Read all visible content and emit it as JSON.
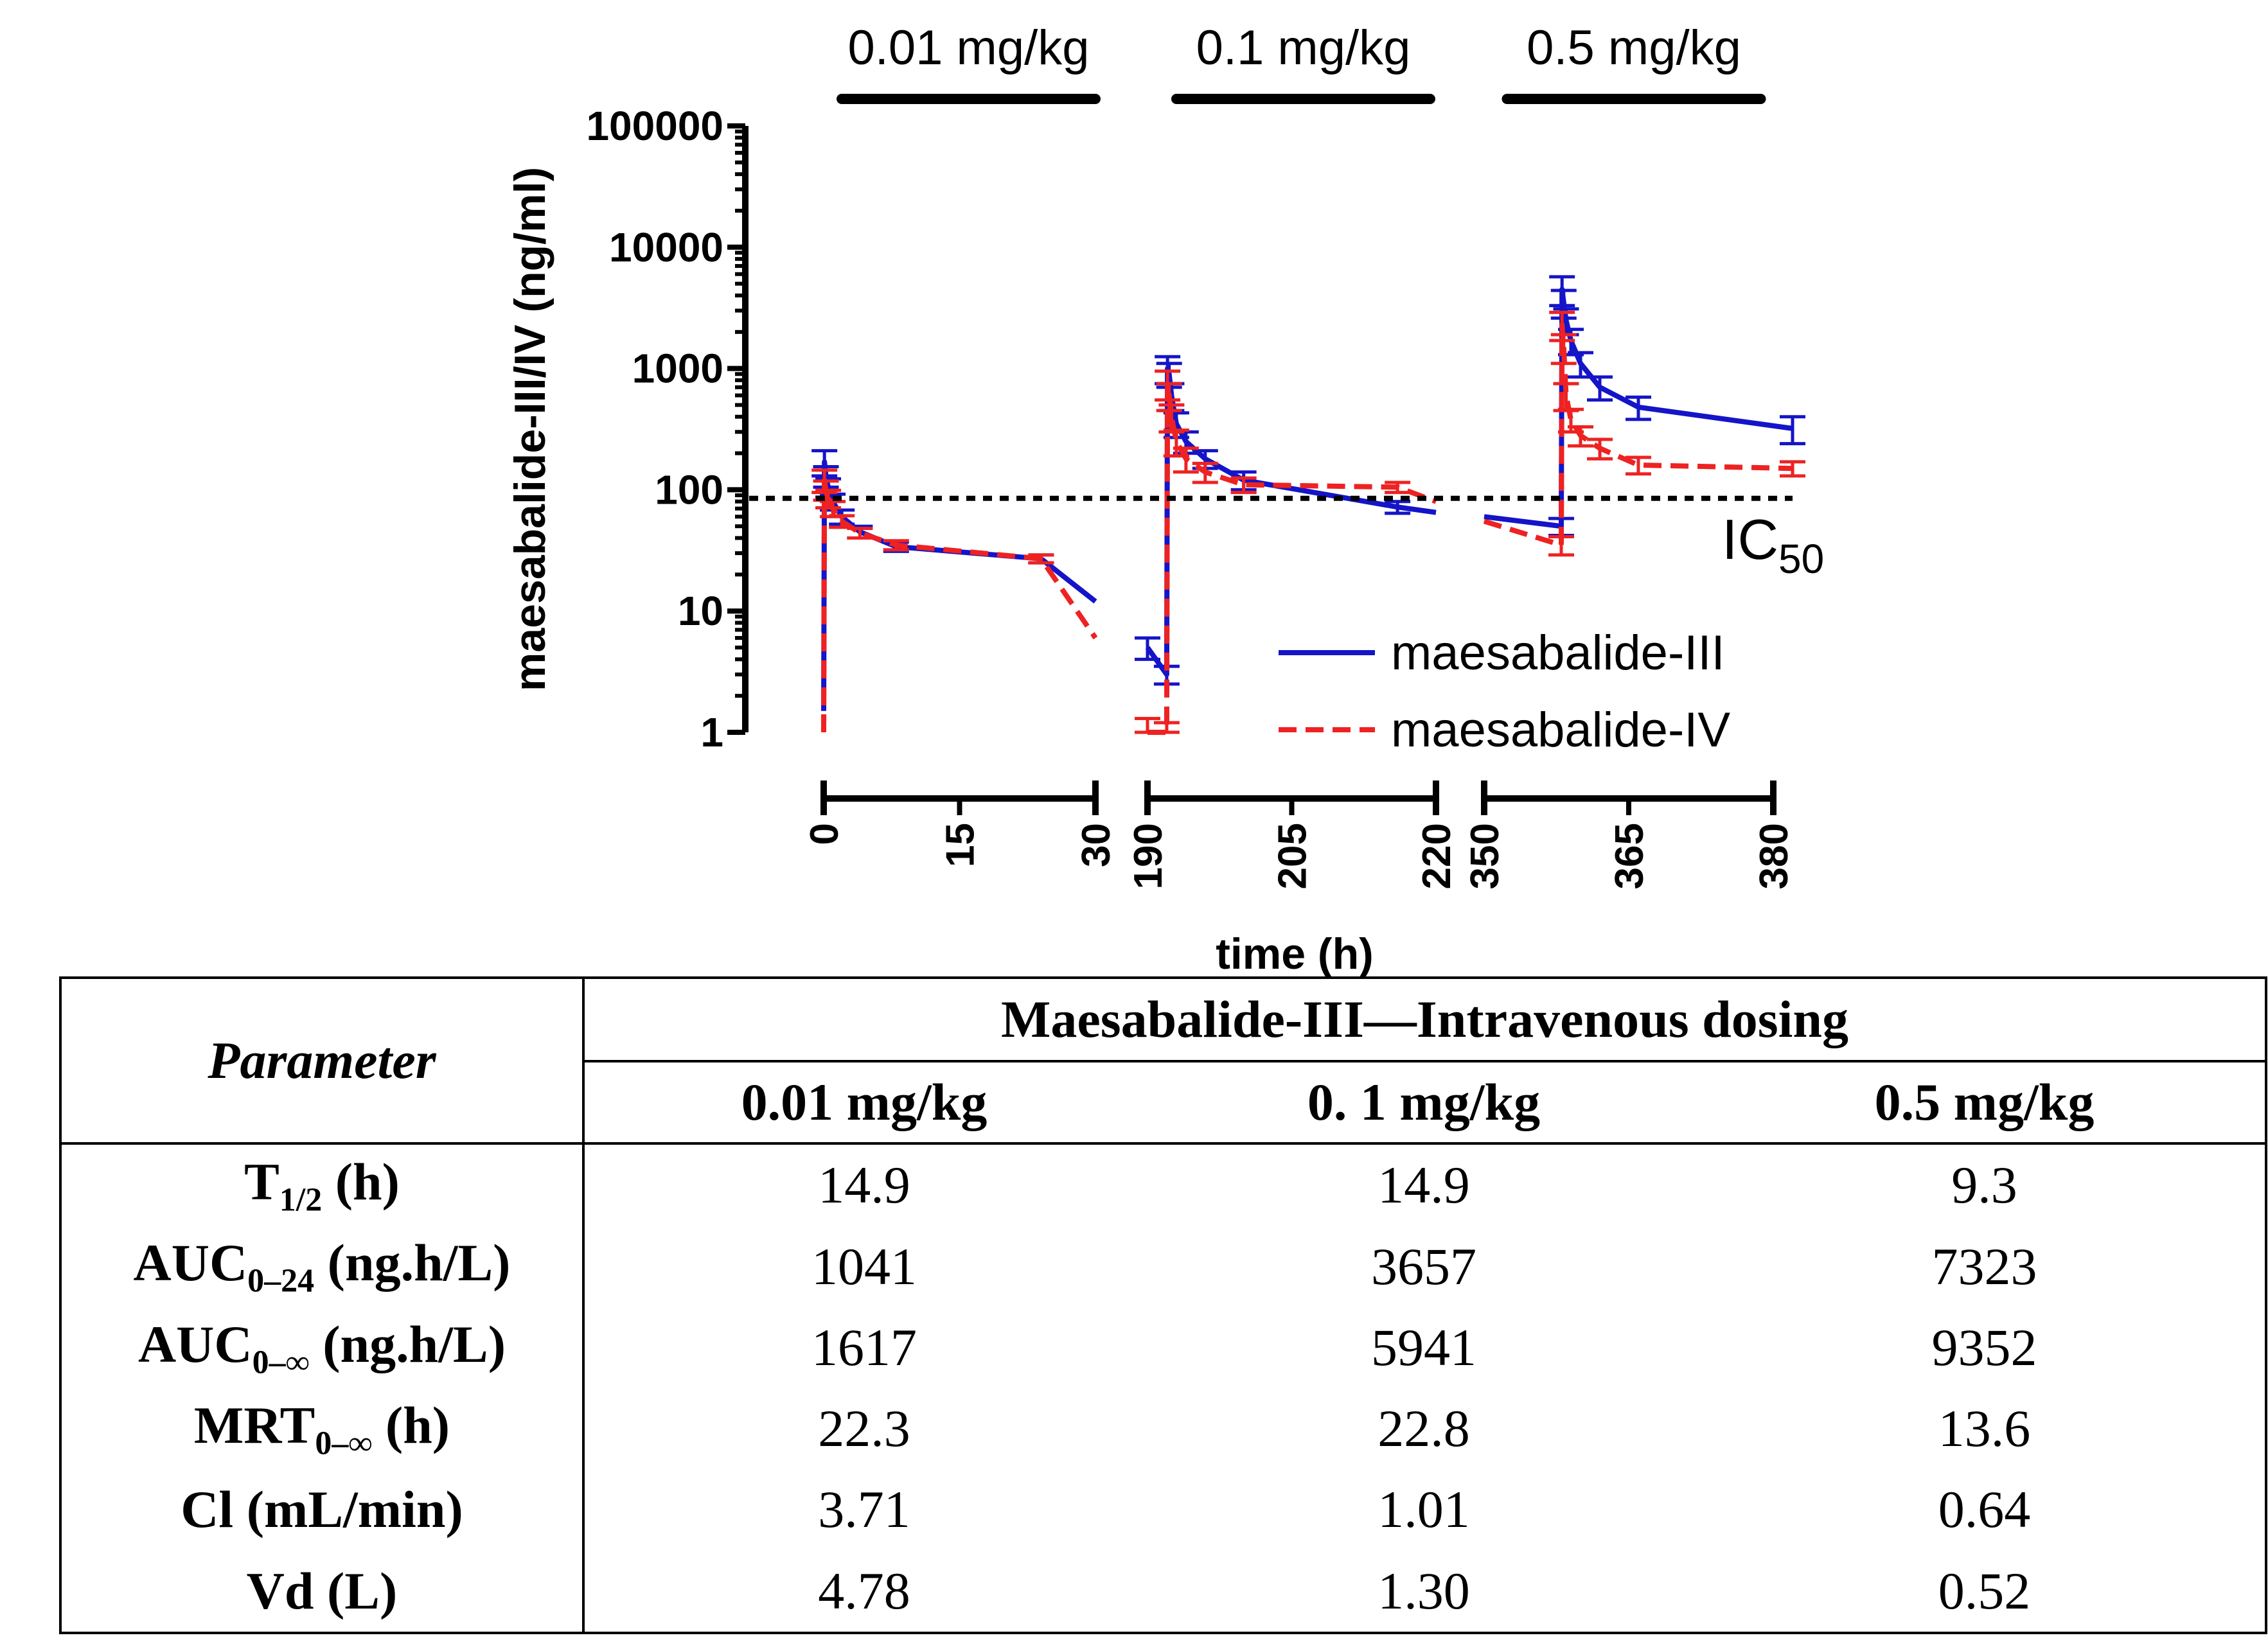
{
  "chart_data": {
    "type": "line",
    "log_scale_y": true,
    "ylabel": "maesabalide-III/IV (ng/ml)",
    "xlabel": "time (h)",
    "yticks": [
      "1",
      "10",
      "100",
      "1000",
      "10000",
      "100000"
    ],
    "ylim": [
      1,
      100000
    ],
    "threshold": {
      "label_main": "IC",
      "label_sub": "50",
      "value": 85
    },
    "legend": {
      "position": "lower-right",
      "entries": [
        "maesabalide-III",
        "maesabalide-IV"
      ]
    },
    "colors": {
      "maesabalide-III": "#1414c8",
      "maesabalide-IV": "#ee2222"
    },
    "segments": [
      {
        "dose_label": "0.01 mg/kg",
        "xlim": [
          0,
          30
        ],
        "xticks": [
          "0",
          "15",
          "30"
        ],
        "series": [
          {
            "name": "maesabalide-III",
            "x": [
              0,
              0.083,
              0.25,
              0.5,
              1,
              2,
              4,
              8,
              24,
              30
            ],
            "y": [
              1.5,
              170,
              130,
              105,
              80,
              60,
              45,
              34,
              27,
              12
            ],
            "err": [
              0,
              40,
              25,
              18,
              12,
              8,
              5,
              3,
              2,
              0
            ]
          },
          {
            "name": "maesabalide-IV",
            "x": [
              0,
              0.083,
              0.25,
              0.5,
              1,
              2,
              4,
              8,
              24,
              30
            ],
            "y": [
              1,
              120,
              100,
              85,
              70,
              55,
              44,
              35,
              27,
              6
            ],
            "err": [
              0,
              25,
              18,
              14,
              10,
              6,
              4,
              3,
              2,
              0
            ]
          }
        ]
      },
      {
        "dose_label": "0.1 mg/kg",
        "xlim": [
          190,
          220
        ],
        "xticks": [
          "190",
          "205",
          "220"
        ],
        "series": [
          {
            "name": "maesabalide-III",
            "x": [
              190,
              192,
              192.08,
              192.25,
              192.5,
              193,
              194,
              196,
              200,
              216,
              220
            ],
            "y": [
              5,
              3,
              1000,
              900,
              600,
              350,
              250,
              180,
              120,
              72,
              65
            ],
            "err": [
              1,
              0.5,
              250,
              200,
              150,
              80,
              50,
              30,
              20,
              8,
              0
            ]
          },
          {
            "name": "maesabalide-IV",
            "x": [
              190,
              192,
              192.08,
              192.25,
              192.5,
              193,
              194,
              196,
              200,
              216,
              220
            ],
            "y": [
              1,
              1,
              750,
              600,
              400,
              250,
              180,
              140,
              110,
              105,
              80
            ],
            "err": [
              0.3,
              0.2,
              200,
              150,
              100,
              60,
              40,
              25,
              15,
              10,
              0
            ]
          }
        ]
      },
      {
        "dose_label": "0.5 mg/kg",
        "xlim": [
          350,
          380
        ],
        "xticks": [
          "350",
          "365",
          "380"
        ],
        "series": [
          {
            "name": "maesabalide-III",
            "x": [
              350,
              358,
              358.08,
              358.25,
              358.5,
              359,
              360,
              362,
              366,
              382
            ],
            "y": [
              60,
              50,
              4500,
              3500,
              2500,
              1700,
              1100,
              700,
              480,
              320
            ],
            "err": [
              0,
              8,
              1200,
              900,
              600,
              400,
              250,
              150,
              100,
              80
            ]
          },
          {
            "name": "maesabalide-IV",
            "x": [
              350,
              358,
              358.08,
              358.25,
              358.5,
              359,
              360,
              362,
              366,
              382
            ],
            "y": [
              55,
              35,
              2300,
              1500,
              600,
              380,
              280,
              220,
              160,
              150
            ],
            "err": [
              0,
              6,
              600,
              400,
              150,
              80,
              50,
              40,
              25,
              20
            ]
          }
        ]
      }
    ]
  },
  "table": {
    "parameter_header": "Parameter",
    "group_header": "Maesabalide-III—Intravenous dosing",
    "dose_headers": [
      "0.01 mg/kg",
      "0. 1 mg/kg",
      "0.5 mg/kg"
    ],
    "rows": [
      {
        "param": "T",
        "sub": "1/2",
        "suffix": " (h)",
        "values": [
          "14.9",
          "14.9",
          "9.3"
        ]
      },
      {
        "param": "AUC",
        "sub": "0–24",
        "suffix": " (ng.h/L)",
        "values": [
          "1041",
          "3657",
          "7323"
        ]
      },
      {
        "param": "AUC",
        "sub": "0–∞",
        "suffix": " (ng.h/L)",
        "values": [
          "1617",
          "5941",
          "9352"
        ]
      },
      {
        "param": "MRT",
        "sub": "0–∞",
        "suffix": " (h)",
        "values": [
          "22.3",
          "22.8",
          "13.6"
        ]
      },
      {
        "param": "Cl",
        "sub": "",
        "suffix": " (mL/min)",
        "values": [
          "3.71",
          "1.01",
          "0.64"
        ]
      },
      {
        "param": "Vd",
        "sub": "",
        "suffix": " (L)",
        "values": [
          "4.78",
          "1.30",
          "0.52"
        ]
      }
    ]
  }
}
